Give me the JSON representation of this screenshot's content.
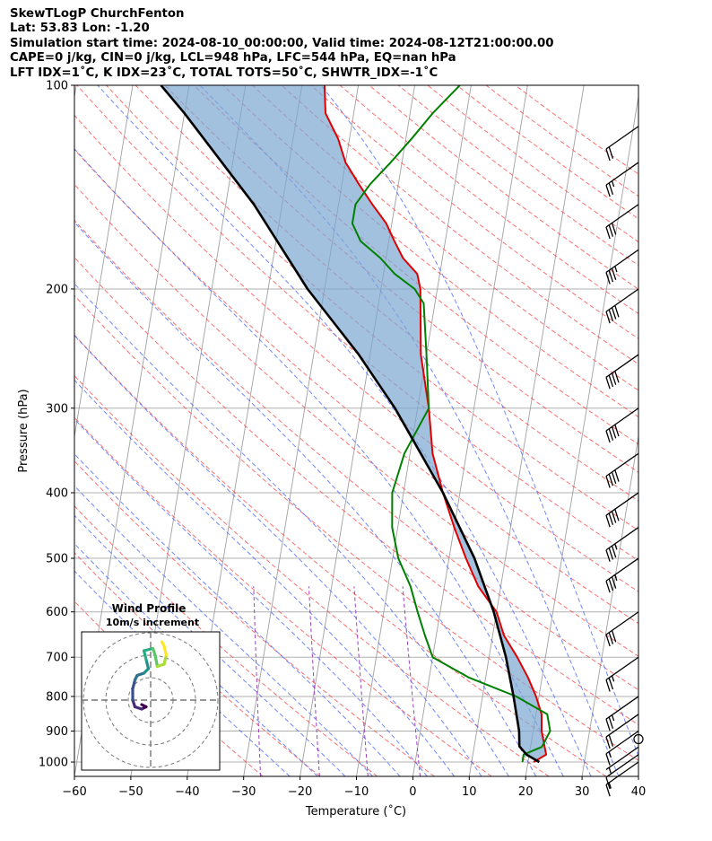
{
  "header": {
    "line1": "SkewTLogP ChurchFenton",
    "line2": "Lat: 53.83   Lon: -1.20",
    "line3": "Simulation start time: 2024-08-10_00:00:00, Valid time: 2024-08-12T21:00:00.00",
    "line4": "CAPE=0 j/kg, CIN=0 j/kg, LCL=948 hPa, LFC=544 hPa, EQ=nan hPa",
    "line5": "LFT IDX=1˚C, K IDX=23˚C, TOTAL TOTS=50˚C, SHWTR_IDX=-1˚C"
  },
  "chart_data": {
    "type": "line",
    "title": "SkewTLogP ChurchFenton",
    "xlabel": "Temperature (˚C)",
    "ylabel": "Pressure (hPa)",
    "xlim": [
      -60,
      40
    ],
    "ylim": [
      1050,
      100
    ],
    "x_ticks": [
      -60,
      -50,
      -40,
      -30,
      -20,
      -10,
      0,
      10,
      20,
      30,
      40
    ],
    "x_tick_labels": [
      "−60",
      "−50",
      "−40",
      "−30",
      "−20",
      "−10",
      "0",
      "10",
      "20",
      "30",
      "40"
    ],
    "y_ticks": [
      1000,
      900,
      800,
      700,
      600,
      500,
      400,
      300,
      200,
      100
    ],
    "y_tick_labels": [
      "1000",
      "900",
      "800",
      "700",
      "600",
      "500",
      "400",
      "300",
      "200",
      "100"
    ],
    "series": [
      {
        "name": "Temperature",
        "color": "#e00000",
        "points": [
          [
            21,
            1000
          ],
          [
            23,
            975
          ],
          [
            22.5,
            950
          ],
          [
            21.5,
            900
          ],
          [
            21,
            850
          ],
          [
            19.5,
            800
          ],
          [
            17.5,
            750
          ],
          [
            15,
            700
          ],
          [
            12,
            650
          ],
          [
            10,
            600
          ],
          [
            6,
            550
          ],
          [
            3,
            500
          ],
          [
            0,
            450
          ],
          [
            -3,
            400
          ],
          [
            -6,
            350
          ],
          [
            -8,
            300
          ],
          [
            -11,
            250
          ],
          [
            -13,
            200
          ],
          [
            -14,
            190
          ],
          [
            -17,
            180
          ],
          [
            -19,
            170
          ],
          [
            -21,
            160
          ],
          [
            -24,
            150
          ],
          [
            -27,
            140
          ],
          [
            -30,
            130
          ],
          [
            -32,
            120
          ],
          [
            -35,
            110
          ],
          [
            -36,
            100
          ]
        ]
      },
      {
        "name": "Dewpoint",
        "color": "#008000",
        "points": [
          [
            19,
            1000
          ],
          [
            19,
            975
          ],
          [
            22,
            950
          ],
          [
            23,
            900
          ],
          [
            22,
            850
          ],
          [
            16,
            800
          ],
          [
            7,
            750
          ],
          [
            0,
            700
          ],
          [
            -2,
            650
          ],
          [
            -4,
            600
          ],
          [
            -6,
            550
          ],
          [
            -9,
            500
          ],
          [
            -11,
            450
          ],
          [
            -12,
            400
          ],
          [
            -11,
            350
          ],
          [
            -8,
            300
          ],
          [
            -10,
            250
          ],
          [
            -12,
            210
          ],
          [
            -14,
            200
          ],
          [
            -18,
            190
          ],
          [
            -21,
            180
          ],
          [
            -25,
            170
          ],
          [
            -27,
            160
          ],
          [
            -27,
            150
          ],
          [
            -25,
            140
          ],
          [
            -22,
            130
          ],
          [
            -19,
            120
          ],
          [
            -16,
            110
          ],
          [
            -12,
            100
          ]
        ]
      },
      {
        "name": "Parcel profile",
        "color": "#000000",
        "points": [
          [
            22,
            1000
          ],
          [
            19.5,
            975
          ],
          [
            18,
            948
          ],
          [
            17.5,
            900
          ],
          [
            15.5,
            800
          ],
          [
            13,
            700
          ],
          [
            9.5,
            600
          ],
          [
            4.5,
            500
          ],
          [
            -3,
            400
          ],
          [
            -14,
            300
          ],
          [
            -22,
            250
          ],
          [
            -33,
            200
          ],
          [
            -45,
            150
          ],
          [
            -60,
            110
          ],
          [
            -65,
            100
          ]
        ]
      }
    ],
    "cape_fill": "shaded region between temperature and parcel profile",
    "reference_lines": [
      "dry adiabats (red dashed)",
      "moist adiabats (blue dashed)",
      "mixing ratio (purple dashed)",
      "isotherms (grey)"
    ],
    "wind_barbs": [
      {
        "p": 1000,
        "speed_kt": 15
      },
      {
        "p": 975,
        "speed_kt": 10
      },
      {
        "p": 950,
        "speed_kt": 5
      },
      {
        "p": 925,
        "speed_kt": 0
      },
      {
        "p": 900,
        "speed_kt": 15
      },
      {
        "p": 850,
        "speed_kt": 20
      },
      {
        "p": 800,
        "speed_kt": 25
      },
      {
        "p": 700,
        "speed_kt": 25
      },
      {
        "p": 600,
        "speed_kt": 30
      },
      {
        "p": 500,
        "speed_kt": 35
      },
      {
        "p": 450,
        "speed_kt": 35
      },
      {
        "p": 400,
        "speed_kt": 40
      },
      {
        "p": 350,
        "speed_kt": 40
      },
      {
        "p": 300,
        "speed_kt": 40
      },
      {
        "p": 250,
        "speed_kt": 40
      },
      {
        "p": 200,
        "speed_kt": 40
      },
      {
        "p": 175,
        "speed_kt": 35
      },
      {
        "p": 150,
        "speed_kt": 30
      },
      {
        "p": 130,
        "speed_kt": 25
      },
      {
        "p": 115,
        "speed_kt": 20
      }
    ],
    "inset": {
      "title": "Wind Profile",
      "subtitle": "10m/s increment",
      "rings": 3,
      "hodograph": [
        [
          -4,
          -2
        ],
        [
          -2,
          -3
        ],
        [
          -4,
          -4
        ],
        [
          -7,
          -3
        ],
        [
          -8,
          0
        ],
        [
          -8,
          5
        ],
        [
          -7,
          9
        ],
        [
          -6,
          11
        ],
        [
          -3,
          12
        ],
        [
          -1,
          14
        ],
        [
          -2,
          18
        ],
        [
          -3,
          22
        ],
        [
          1,
          23
        ],
        [
          2,
          20
        ],
        [
          3,
          15
        ],
        [
          6,
          16
        ],
        [
          7,
          20
        ],
        [
          6,
          24
        ],
        [
          5,
          26
        ]
      ]
    }
  }
}
